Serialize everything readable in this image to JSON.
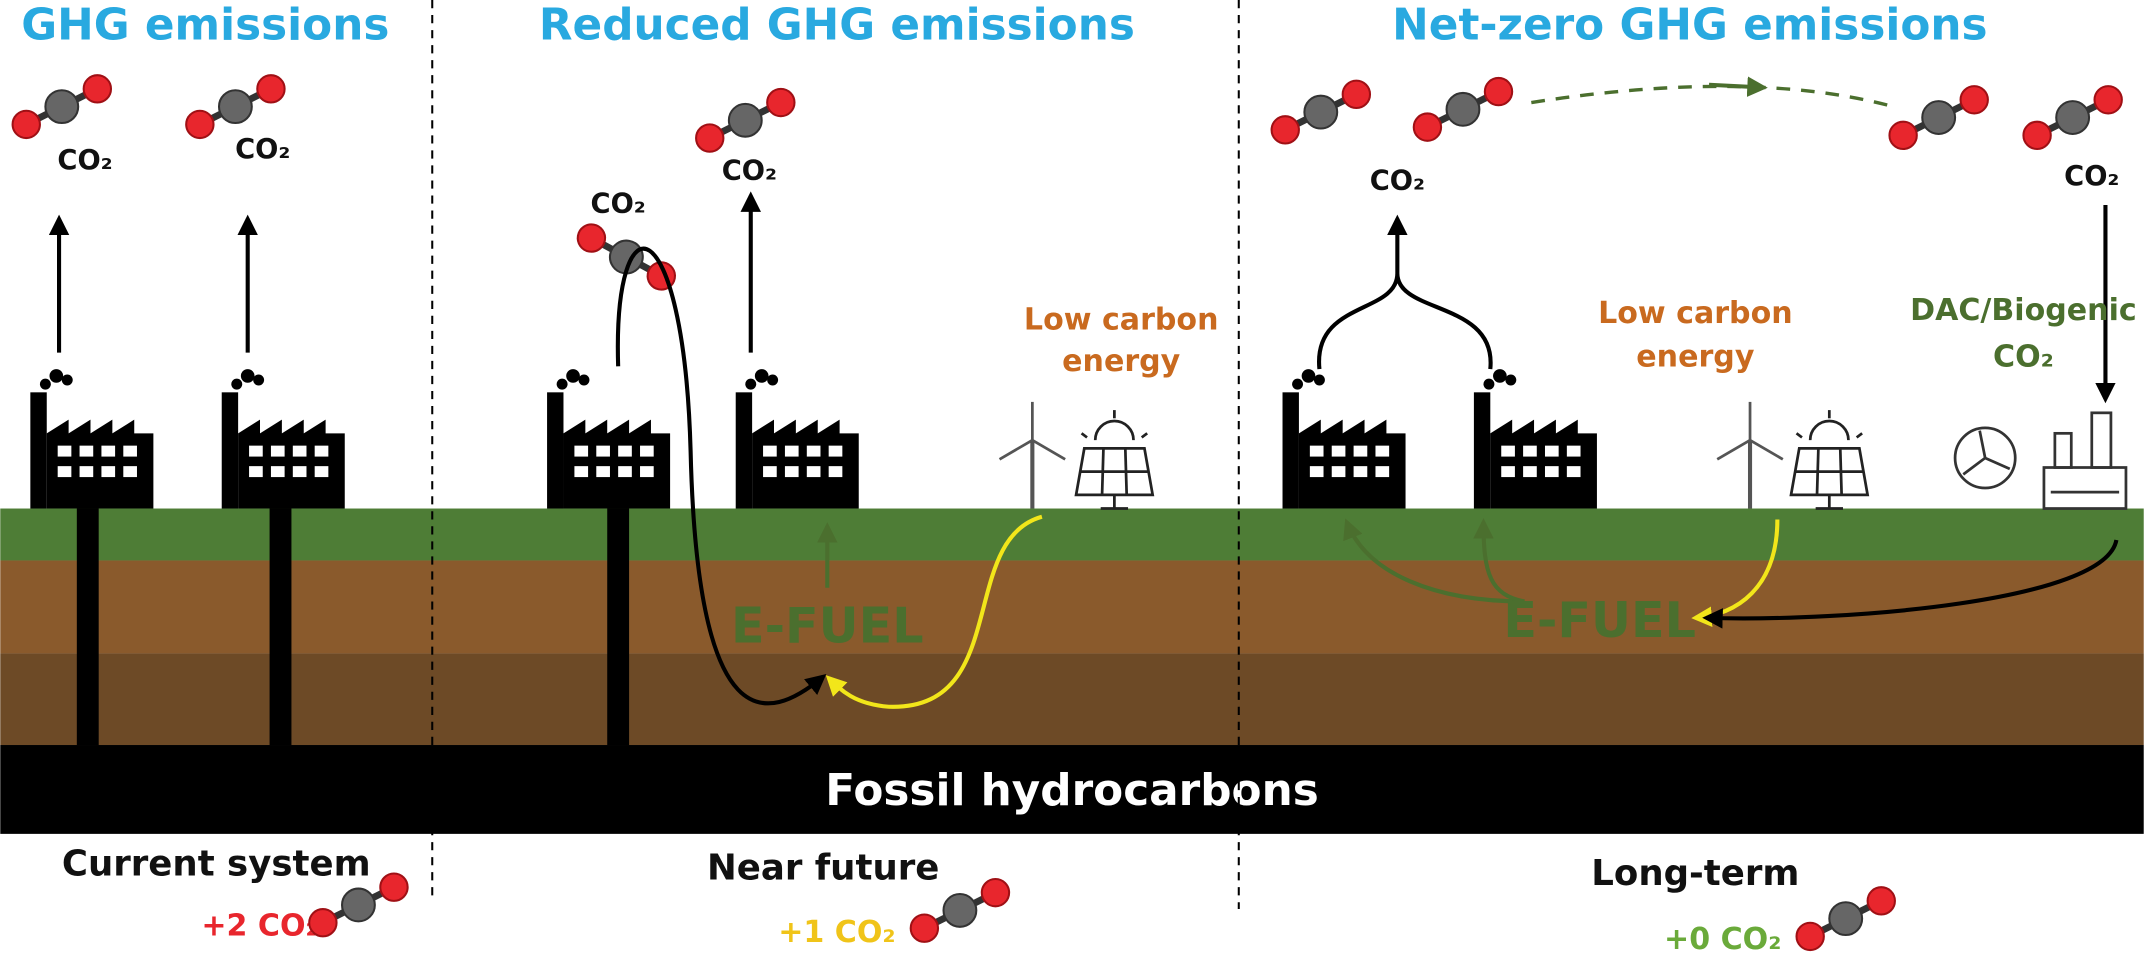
{
  "panels": [
    {
      "title": "GHG emissions",
      "caption": "Current system",
      "balance": "+2 CO₂"
    },
    {
      "title": "Reduced GHG emissions",
      "caption": "Near future",
      "balance": "+1 CO₂"
    },
    {
      "title": "Net-zero GHG emissions",
      "caption": "Long-term",
      "balance": "+0 CO₂"
    }
  ],
  "co2_label": "CO₂",
  "energy_label": [
    "Low carbon",
    "energy"
  ],
  "dac_label": [
    "DAC/Biogenic",
    "CO₂"
  ],
  "efuel_label": "E-FUEL",
  "reservoir_label": "Fossil hydrocarbons"
}
